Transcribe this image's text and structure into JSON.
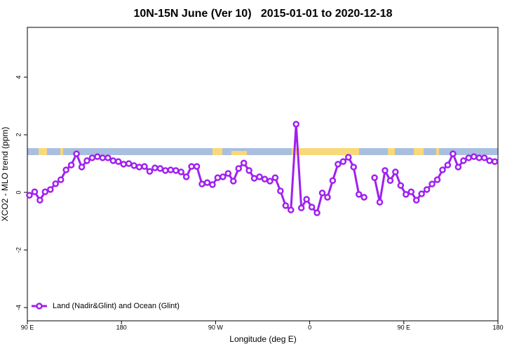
{
  "chart_data": {
    "type": "line",
    "title": "10N-15N June (Ver 10)   2015-01-01 to 2020-12-18",
    "x_label": "Longitude (deg E)",
    "y_label": "XCO2 - MLO trend (ppm)",
    "xlim": [
      90,
      540
    ],
    "ylim": [
      -4.46,
      5.73
    ],
    "xticks": [
      {
        "value": 90,
        "label": "90 E"
      },
      180,
      {
        "value": 270,
        "label": "90 W"
      },
      {
        "value": 360,
        "label": "0"
      },
      {
        "value": 450,
        "label": "90 E"
      },
      {
        "value": 540,
        "label": "180"
      }
    ],
    "yticks": [
      -4,
      -2,
      0,
      2,
      4
    ],
    "legend": "bottom-left",
    "x": [
      92,
      97,
      102,
      107,
      112,
      117,
      122,
      127,
      132,
      137,
      142,
      147,
      152,
      157,
      162,
      167,
      172,
      177,
      182,
      187,
      192,
      197,
      202,
      207,
      212,
      217,
      222,
      227,
      232,
      237,
      242,
      247,
      252,
      257,
      262,
      267,
      272,
      277,
      282,
      287,
      292,
      297,
      302,
      307,
      312,
      317,
      322,
      327,
      332,
      337,
      342,
      347,
      352,
      357,
      362,
      367,
      372,
      377,
      382,
      387,
      392,
      397,
      402,
      407,
      412,
      417,
      422,
      427,
      432,
      437,
      442,
      447,
      452,
      457,
      462,
      467,
      472,
      477,
      482,
      487,
      492,
      497,
      502,
      507,
      512,
      517,
      522,
      527,
      532,
      537
    ],
    "series": [
      {
        "name": "Land (Nadir&Glint) and Ocean (Glint)",
        "color": "#a020f0",
        "values": [
          -0.1,
          0.02,
          -0.27,
          0.02,
          0.1,
          0.3,
          0.44,
          0.78,
          0.95,
          1.34,
          0.88,
          1.1,
          1.2,
          1.24,
          1.2,
          1.2,
          1.1,
          1.07,
          0.98,
          1.0,
          0.93,
          0.88,
          0.9,
          0.73,
          0.85,
          0.83,
          0.76,
          0.78,
          0.76,
          0.71,
          0.54,
          0.9,
          0.9,
          0.29,
          0.34,
          0.27,
          0.51,
          0.54,
          0.66,
          0.39,
          0.83,
          1.02,
          0.76,
          0.49,
          0.54,
          0.46,
          0.39,
          0.51,
          0.05,
          -0.46,
          -0.61,
          2.37,
          -0.54,
          -0.24,
          -0.51,
          -0.71,
          -0.02,
          -0.17,
          0.41,
          0.98,
          1.07,
          1.22,
          0.88,
          -0.07,
          -0.17,
          null,
          0.51,
          -0.34,
          0.76,
          0.41,
          0.71,
          0.24,
          -0.07,
          0.02,
          -0.27,
          -0.05,
          0.1,
          0.29,
          0.44,
          0.78,
          0.95,
          1.34,
          0.88,
          1.1,
          1.2,
          1.24,
          1.2,
          1.2,
          1.1,
          1.07
        ]
      }
    ]
  }
}
